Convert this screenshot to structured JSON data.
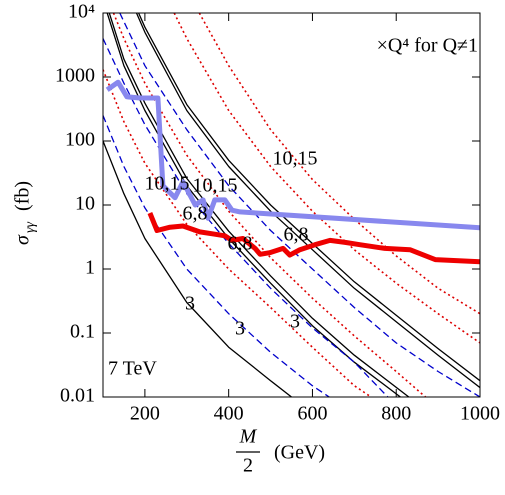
{
  "chart_data": {
    "type": "line",
    "log_y": true,
    "xlim": [
      100,
      1000
    ],
    "ylim": [
      0.01,
      10000
    ],
    "xticks": [
      200,
      400,
      600,
      800,
      1000
    ],
    "yticks": [
      0.01,
      0.1,
      1,
      10,
      100,
      1000,
      {
        "value": 10000,
        "label": "10⁴"
      }
    ],
    "xlabel": {
      "numerator": "M",
      "denominator": "2",
      "unit": "(GeV)"
    },
    "ylabel": {
      "symbol": "σ",
      "subscript": "γγ",
      "unit": "(fb)"
    },
    "annotations": [
      {
        "text": "×Q⁴ for Q≠1",
        "color": "#000000"
      },
      {
        "text": "7 TeV",
        "color": "#000000"
      },
      {
        "text": "10,15",
        "color": "#000000"
      },
      {
        "text": "10,15",
        "color": "#0000cc"
      },
      {
        "text": "10,15",
        "color": "#dd0000"
      },
      {
        "text": "6,8",
        "color": "#000000"
      },
      {
        "text": "6,8",
        "color": "#0000cc"
      },
      {
        "text": "6,8",
        "color": "#dd0000"
      },
      {
        "text": "3",
        "color": "#000000"
      },
      {
        "text": "3",
        "color": "#0000cc"
      },
      {
        "text": "3",
        "color": "#dd0000"
      }
    ],
    "series": [
      {
        "color": "#000000",
        "style": "solid",
        "width": 1.3,
        "x": [
          100,
          150,
          200,
          300,
          400,
          500,
          550
        ],
        "values": [
          100,
          15,
          3,
          0.3,
          0.06,
          0.018,
          0.01
        ]
      },
      {
        "color": "#0000cc",
        "style": "dashed",
        "width": 1.3,
        "x": [
          100,
          150,
          200,
          300,
          400,
          500,
          600,
          640
        ],
        "values": [
          250,
          40,
          9,
          1,
          0.2,
          0.05,
          0.015,
          0.01
        ]
      },
      {
        "color": "#dd0000",
        "style": "dotted",
        "width": 1.6,
        "x": [
          100,
          150,
          200,
          300,
          400,
          500,
          600,
          700,
          740
        ],
        "values": [
          1300,
          200,
          45,
          5,
          1,
          0.25,
          0.06,
          0.015,
          0.01
        ]
      },
      {
        "color": "#000000",
        "style": "solid",
        "width": 1.3,
        "x": [
          110,
          150,
          200,
          300,
          400,
          500,
          600,
          700,
          810
        ],
        "values": [
          10000,
          1500,
          300,
          20,
          3,
          0.6,
          0.13,
          0.035,
          0.01
        ]
      },
      {
        "color": "#000000",
        "style": "solid",
        "width": 1.3,
        "x": [
          115,
          150,
          200,
          300,
          400,
          500,
          600,
          700,
          830
        ],
        "values": [
          10000,
          1900,
          390,
          26,
          3.9,
          0.78,
          0.17,
          0.045,
          0.01
        ]
      },
      {
        "color": "#0000cc",
        "style": "dashed",
        "width": 1.3,
        "x": [
          100,
          150,
          200,
          300,
          400,
          500,
          600,
          700,
          780
        ],
        "values": [
          4000,
          800,
          180,
          15,
          2.5,
          0.5,
          0.12,
          0.035,
          0.01
        ]
      },
      {
        "color": "#dd0000",
        "style": "dotted",
        "width": 1.6,
        "x": [
          125,
          150,
          200,
          300,
          400,
          500,
          600,
          700,
          800,
          870
        ],
        "values": [
          10000,
          4000,
          800,
          60,
          8,
          1.5,
          0.35,
          0.09,
          0.025,
          0.01
        ]
      },
      {
        "color": "#000000",
        "style": "solid",
        "width": 1.3,
        "x": [
          180,
          200,
          300,
          400,
          500,
          600,
          700,
          800,
          900,
          1000
        ],
        "values": [
          10000,
          5000,
          300,
          40,
          8,
          2,
          0.5,
          0.15,
          0.045,
          0.014
        ]
      },
      {
        "color": "#000000",
        "style": "solid",
        "width": 1.3,
        "x": [
          185,
          200,
          300,
          400,
          500,
          600,
          700,
          800,
          900,
          1000
        ],
        "values": [
          10000,
          6000,
          370,
          50,
          10,
          2.5,
          0.63,
          0.19,
          0.057,
          0.018
        ]
      },
      {
        "color": "#0000cc",
        "style": "dashed",
        "width": 1.3,
        "x": [
          140,
          200,
          300,
          400,
          500,
          600,
          700,
          800,
          900,
          1000
        ],
        "values": [
          10000,
          1500,
          150,
          20,
          4,
          1,
          0.25,
          0.07,
          0.025,
          0.01
        ]
      },
      {
        "color": "#dd0000",
        "style": "dotted",
        "width": 1.6,
        "x": [
          270,
          300,
          400,
          500,
          600,
          700,
          800,
          900,
          1000
        ],
        "values": [
          10000,
          4000,
          300,
          40,
          8,
          2,
          0.6,
          0.2,
          0.07
        ]
      },
      {
        "color": "#dd0000",
        "style": "dotted",
        "width": 1.6,
        "x": [
          330,
          400,
          500,
          600,
          700,
          800,
          900,
          1000
        ],
        "values": [
          10000,
          1500,
          150,
          25,
          6,
          1.6,
          0.5,
          0.2
        ]
      },
      {
        "color": "#8888ee",
        "style": "solid",
        "width": 5,
        "x": [
          110,
          136,
          157,
          188,
          231,
          243,
          272,
          291,
          320,
          339,
          351,
          367,
          391,
          408,
          427,
          1000
        ],
        "values": [
          630,
          830,
          490,
          470,
          470,
          20,
          13,
          23,
          10,
          12,
          6.2,
          12,
          12,
          8.3,
          7.8,
          4.4
        ]
      },
      {
        "color": "#ee0000",
        "style": "solid",
        "width": 5,
        "x": [
          212,
          229,
          260,
          291,
          331,
          367,
          391,
          408,
          434,
          463,
          475,
          498,
          530,
          546,
          570,
          606,
          642,
          678,
          713,
          773,
          833,
          893,
          1000
        ],
        "values": [
          7.5,
          4,
          4.5,
          4.7,
          3.8,
          3.5,
          3.3,
          2.8,
          3,
          2.1,
          1.7,
          1.8,
          2.1,
          1.65,
          2,
          2.4,
          2.8,
          2.6,
          2.4,
          2.1,
          2,
          1.4,
          1.3
        ]
      }
    ]
  }
}
